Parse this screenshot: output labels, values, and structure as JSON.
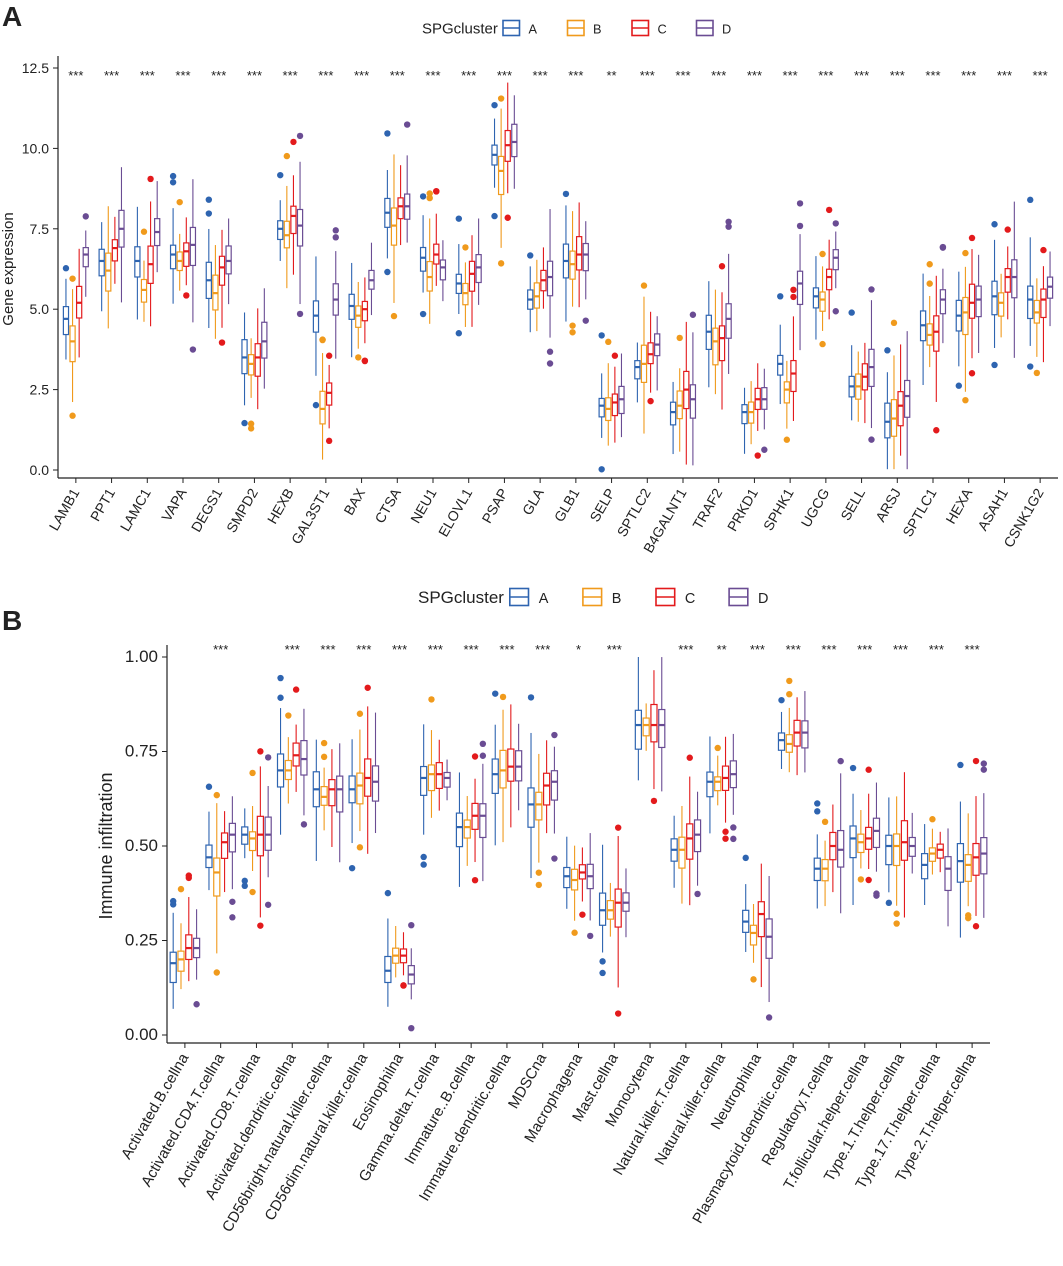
{
  "colors": {
    "A": "#2e64b0",
    "B": "#f09a1c",
    "C": "#e31a1c",
    "D": "#6a4c93"
  },
  "chart_data": [
    {
      "type": "boxplot",
      "panel_label": "A",
      "legend_title": "SPGcluster",
      "legend_labels": [
        "A",
        "B",
        "C",
        "D"
      ],
      "ylabel": "Gene expression",
      "ylim": [
        0,
        12.5
      ],
      "yticks": [
        "0.0",
        "2.5",
        "5.0",
        "7.5",
        "10.0",
        "12.5"
      ],
      "categories": [
        "LAMB1",
        "PPT1",
        "LAMC1",
        "VAPA",
        "DEGS1",
        "SMPD2",
        "HEXB",
        "GAL3ST1",
        "BAX",
        "CTSA",
        "NEU1",
        "ELOVL1",
        "PSAP",
        "GLA",
        "GLB1",
        "SELP",
        "SPTLC2",
        "B4GALNT1",
        "TRAF2",
        "PRKD1",
        "SPHK1",
        "UGCG",
        "SELL",
        "ARSJ",
        "SPTLC1",
        "HEXA",
        "ASAH1",
        "CSNK1G2"
      ],
      "significance": [
        "***",
        "***",
        "***",
        "***",
        "***",
        "***",
        "***",
        "***",
        "***",
        "***",
        "***",
        "***",
        "***",
        "***",
        "***",
        "**",
        "***",
        "***",
        "***",
        "***",
        "***",
        "***",
        "***",
        "***",
        "***",
        "***",
        "***",
        "***"
      ],
      "medians": [
        [
          4.7,
          4.0,
          5.2,
          6.7
        ],
        [
          6.5,
          6.2,
          6.9,
          7.5
        ],
        [
          6.5,
          5.6,
          6.4,
          7.4
        ],
        [
          6.7,
          6.5,
          6.8,
          7.0
        ],
        [
          5.9,
          5.5,
          6.3,
          6.5
        ],
        [
          3.5,
          3.3,
          3.5,
          4.0
        ],
        [
          7.5,
          7.3,
          7.9,
          7.6
        ],
        [
          4.8,
          1.9,
          2.4,
          5.3
        ],
        [
          5.1,
          4.8,
          5.0,
          5.9
        ],
        [
          8.0,
          7.6,
          8.2,
          8.2
        ],
        [
          6.6,
          6.0,
          6.7,
          6.3
        ],
        [
          5.8,
          5.5,
          6.1,
          6.3
        ],
        [
          9.8,
          9.3,
          10.1,
          10.2
        ],
        [
          5.3,
          5.4,
          5.9,
          6.0
        ],
        [
          6.5,
          6.4,
          6.7,
          6.7
        ],
        [
          2.0,
          1.9,
          2.1,
          2.2
        ],
        [
          3.2,
          3.3,
          3.6,
          3.9
        ],
        [
          1.8,
          2.0,
          2.5,
          2.2
        ],
        [
          4.3,
          4.0,
          4.1,
          4.7
        ],
        [
          1.8,
          1.8,
          2.2,
          2.2
        ],
        [
          3.3,
          2.5,
          3.0,
          5.8
        ],
        [
          5.4,
          5.3,
          6.0,
          6.6
        ],
        [
          2.6,
          2.6,
          2.9,
          3.2
        ],
        [
          1.5,
          1.6,
          2.0,
          2.3
        ],
        [
          4.5,
          4.2,
          4.3,
          5.3
        ],
        [
          4.8,
          4.9,
          5.2,
          5.3
        ],
        [
          5.4,
          5.2,
          6.0,
          6.0
        ],
        [
          5.3,
          4.9,
          5.3,
          5.7
        ]
      ]
    },
    {
      "type": "boxplot",
      "panel_label": "B",
      "legend_title": "SPGcluster",
      "legend_labels": [
        "A",
        "B",
        "C",
        "D"
      ],
      "ylabel": "Immune infiltration",
      "ylim": [
        0,
        1
      ],
      "yticks": [
        "0.00",
        "0.25",
        "0.50",
        "0.75",
        "1.00"
      ],
      "categories": [
        "Activated.B.cellna",
        "Activated.CD4.T.cellna",
        "Activated.CD8.T.cellna",
        "Activated.dendritic.cellna",
        "CD56bright.natural.killer.cellna",
        "CD56dim.natural.killer.cellna",
        "Eosinophilna",
        "Gamma.delta.T.cellna",
        "Immature..B.cellna",
        "Immature.dendritic.cellna",
        "MDSCna",
        "Macrophagena",
        "Mast.cellna",
        "Monocytena",
        "Natural.killer.T.cellna",
        "Natural.killer.cellna",
        "Neutrophilna",
        "Plasmacytoid.dendritic.cellna",
        "Regulatory.T.cellna",
        "T.follicular.helper.cellna",
        "Type.1.T.helper.cellna",
        "Type.17.T.helper.cellna",
        "Type.2.T.helper.cellna"
      ],
      "significance": [
        "",
        "***",
        "",
        "***",
        "***",
        "***",
        "***",
        "***",
        "***",
        "***",
        "***",
        "*",
        "***",
        "",
        "***",
        "**",
        "***",
        "***",
        "***",
        "***",
        "***",
        "***",
        "***"
      ],
      "medians": [
        [
          0.19,
          0.2,
          0.23,
          0.23
        ],
        [
          0.47,
          0.43,
          0.51,
          0.53
        ],
        [
          0.53,
          0.52,
          0.53,
          0.53
        ],
        [
          0.7,
          0.7,
          0.74,
          0.73
        ],
        [
          0.65,
          0.63,
          0.65,
          0.65
        ],
        [
          0.65,
          0.66,
          0.68,
          0.67
        ],
        [
          0.17,
          0.21,
          0.21,
          0.16
        ],
        [
          0.68,
          0.69,
          0.69,
          0.68
        ],
        [
          0.55,
          0.55,
          0.58,
          0.58
        ],
        [
          0.69,
          0.7,
          0.71,
          0.71
        ],
        [
          0.61,
          0.61,
          0.66,
          0.67
        ],
        [
          0.42,
          0.41,
          0.43,
          0.42
        ],
        [
          0.33,
          0.33,
          0.35,
          0.35
        ],
        [
          0.82,
          0.82,
          0.82,
          0.82
        ],
        [
          0.49,
          0.49,
          0.52,
          0.53
        ],
        [
          0.67,
          0.67,
          0.68,
          0.69
        ],
        [
          0.3,
          0.27,
          0.32,
          0.26
        ],
        [
          0.78,
          0.77,
          0.8,
          0.8
        ],
        [
          0.44,
          0.44,
          0.5,
          0.49
        ],
        [
          0.52,
          0.51,
          0.52,
          0.54
        ],
        [
          0.5,
          0.5,
          0.51,
          0.5
        ],
        [
          0.45,
          0.48,
          0.49,
          0.44
        ],
        [
          0.46,
          0.45,
          0.47,
          0.48
        ]
      ]
    }
  ]
}
